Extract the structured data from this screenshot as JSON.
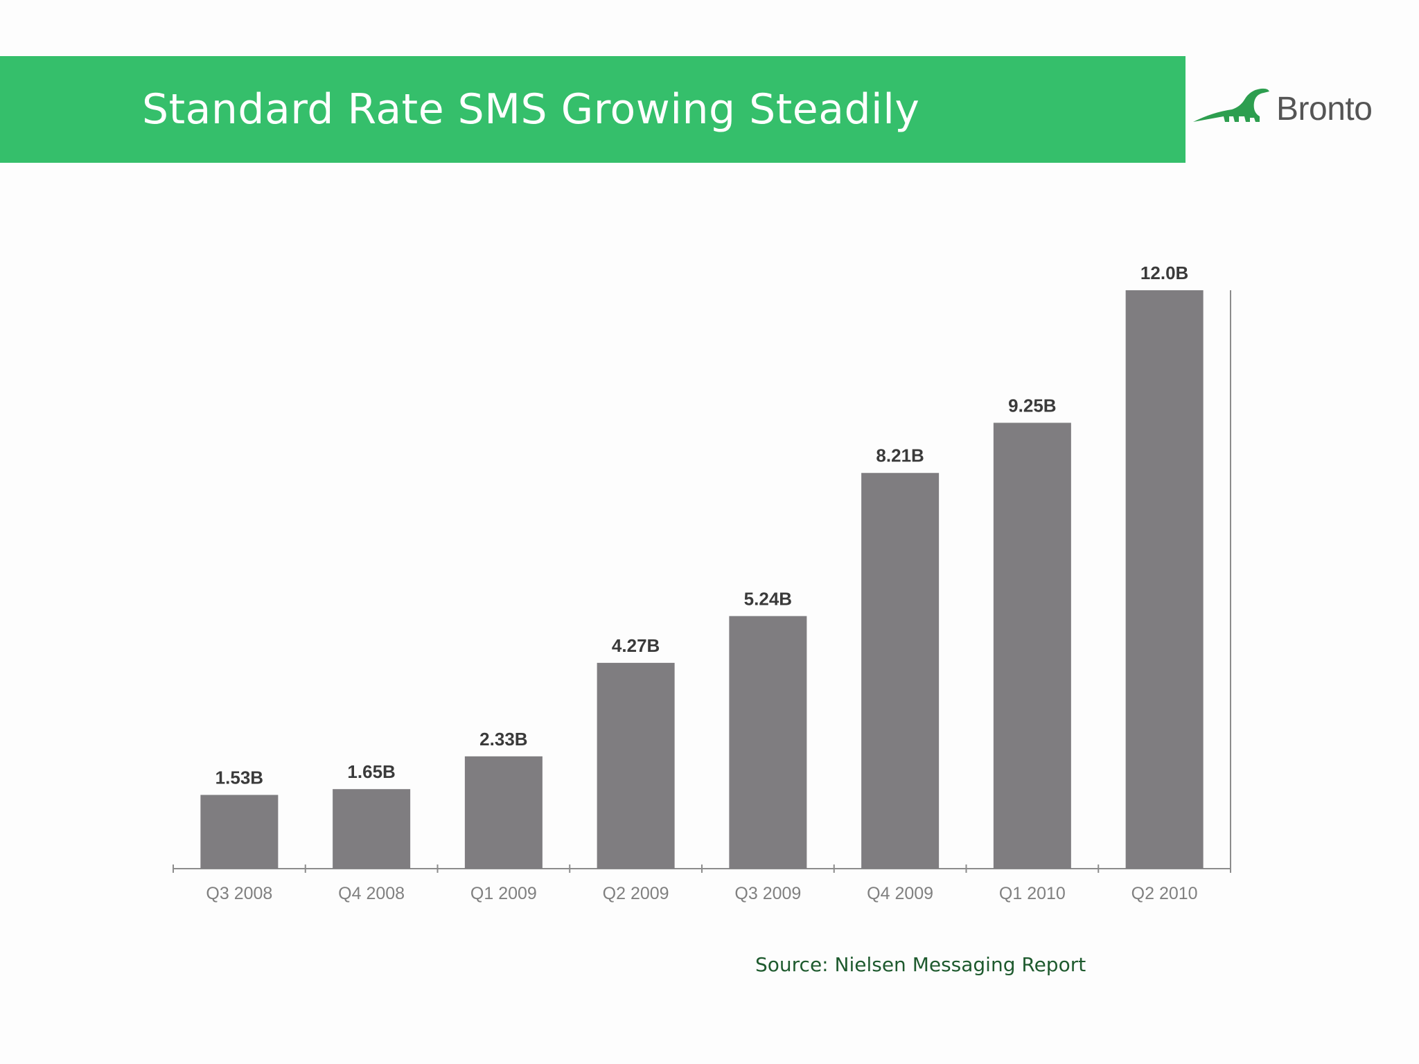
{
  "header": {
    "title": "Standard Rate SMS Growing Steadily",
    "bar_color": "#35bf6b"
  },
  "brand": {
    "name": "Bronto",
    "logo_icon": "brontosaurus-logo-icon",
    "logo_color": "#2d9e4f"
  },
  "chart_data": {
    "type": "bar",
    "categories": [
      "Q3 2008",
      "Q4 2008",
      "Q1 2009",
      "Q2 2009",
      "Q3 2009",
      "Q4 2009",
      "Q1 2010",
      "Q2 2010"
    ],
    "values": [
      1.53,
      1.65,
      2.33,
      4.27,
      5.24,
      8.21,
      9.25,
      12.0
    ],
    "data_labels": [
      "1.53B",
      "1.65B",
      "2.33B",
      "4.27B",
      "5.24B",
      "8.21B",
      "9.25B",
      "12.0B"
    ],
    "unit": "B",
    "bar_color": "#7f7d80",
    "ylim": [
      0,
      12.0
    ],
    "grid": false,
    "legend": "none"
  },
  "source": "Source: Nielsen Messaging Report"
}
